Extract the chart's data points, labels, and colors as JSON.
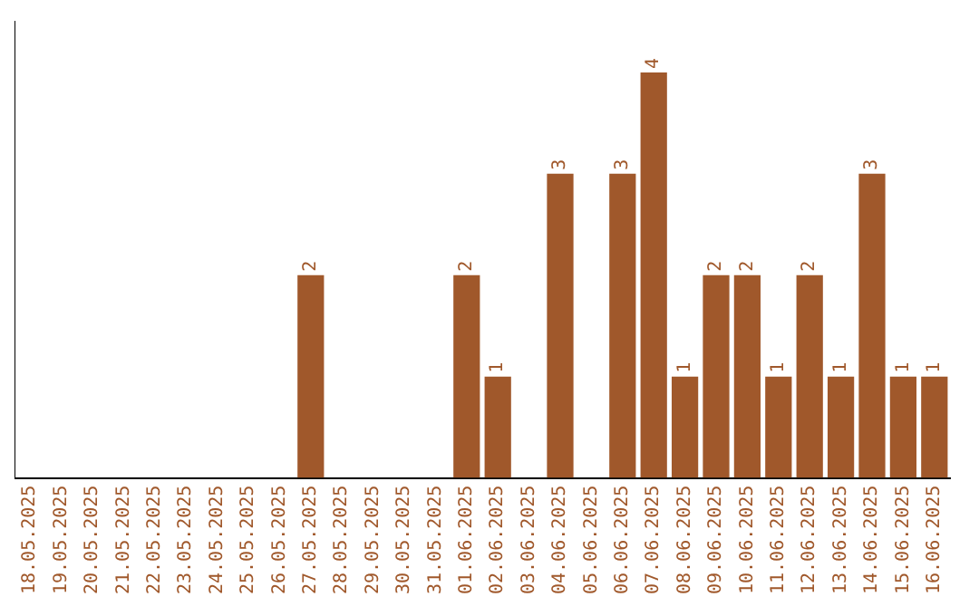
{
  "chart_data": {
    "type": "bar",
    "categories": [
      "18.05.2025",
      "19.05.2025",
      "20.05.2025",
      "21.05.2025",
      "22.05.2025",
      "23.05.2025",
      "24.05.2025",
      "25.05.2025",
      "26.05.2025",
      "27.05.2025",
      "28.05.2025",
      "29.05.2025",
      "30.05.2025",
      "31.05.2025",
      "01.06.2025",
      "02.06.2025",
      "03.06.2025",
      "04.06.2025",
      "05.06.2025",
      "06.06.2025",
      "07.06.2025",
      "08.06.2025",
      "09.06.2025",
      "10.06.2025",
      "11.06.2025",
      "12.06.2025",
      "13.06.2025",
      "14.06.2025",
      "15.06.2025",
      "16.06.2025"
    ],
    "values": [
      0,
      0,
      0,
      0,
      0,
      0,
      0,
      0,
      0,
      2,
      0,
      0,
      0,
      0,
      2,
      1,
      0,
      3,
      0,
      3,
      4,
      1,
      2,
      2,
      1,
      2,
      1,
      3,
      1,
      1
    ],
    "value_labels": [
      null,
      null,
      null,
      null,
      null,
      null,
      null,
      null,
      null,
      "2",
      null,
      null,
      null,
      null,
      "2",
      "1",
      null,
      "3",
      null,
      "3",
      "4",
      "1",
      "2",
      "2",
      "1",
      "2",
      "1",
      "3",
      "1",
      "1"
    ],
    "color": "#a0582b",
    "tick_labels": "x",
    "grid": false,
    "legend": false
  }
}
